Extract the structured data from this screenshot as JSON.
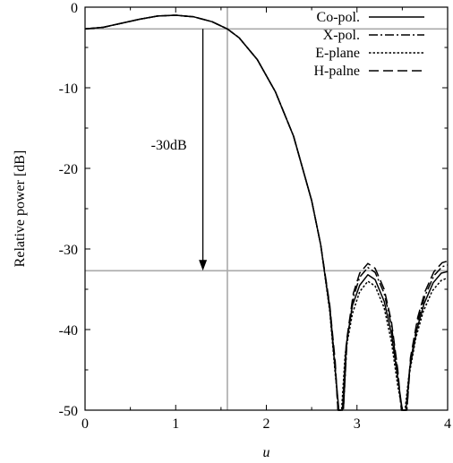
{
  "chart_data": {
    "type": "line",
    "xlabel": "u",
    "ylabel": "Relative power [dB]",
    "xlim": [
      0,
      4
    ],
    "ylim": [
      -50,
      0
    ],
    "x_ticks": [
      "0",
      "1",
      "2",
      "3",
      "4"
    ],
    "y_ticks": [
      "0",
      "-10",
      "-20",
      "-30",
      "-40",
      "-50"
    ],
    "grid": false,
    "legend_position": "top-right",
    "annotations": [
      {
        "text": "-30dB",
        "arrow_from": [
          1.3,
          -2.7
        ],
        "arrow_to": [
          1.3,
          -32.7
        ]
      }
    ],
    "reference_lines": {
      "horizontal": [
        -2.7,
        -32.7
      ],
      "vertical": [
        1.57
      ]
    },
    "series": [
      {
        "name": "Co-pol.",
        "style": "solid",
        "points": [
          [
            0,
            -2.7
          ],
          [
            0.2,
            -2.5
          ],
          [
            0.4,
            -2.0
          ],
          [
            0.6,
            -1.5
          ],
          [
            0.8,
            -1.1
          ],
          [
            1.0,
            -1.0
          ],
          [
            1.2,
            -1.2
          ],
          [
            1.4,
            -1.8
          ],
          [
            1.57,
            -2.7
          ],
          [
            1.7,
            -3.8
          ],
          [
            1.9,
            -6.5
          ],
          [
            2.1,
            -10.5
          ],
          [
            2.3,
            -16.0
          ],
          [
            2.5,
            -24.0
          ],
          [
            2.6,
            -29.5
          ],
          [
            2.7,
            -37.5
          ],
          [
            2.76,
            -45.0
          ],
          [
            2.8,
            -50.0
          ],
          [
            2.84,
            -50.0
          ],
          [
            2.88,
            -42.0
          ],
          [
            2.95,
            -37.0
          ],
          [
            3.03,
            -34.5
          ],
          [
            3.12,
            -33.2
          ],
          [
            3.2,
            -33.8
          ],
          [
            3.3,
            -36.5
          ],
          [
            3.38,
            -40.5
          ],
          [
            3.45,
            -46.0
          ],
          [
            3.5,
            -50.0
          ],
          [
            3.54,
            -50.0
          ],
          [
            3.58,
            -45.0
          ],
          [
            3.66,
            -40.0
          ],
          [
            3.74,
            -36.8
          ],
          [
            3.84,
            -34.2
          ],
          [
            3.93,
            -33.0
          ],
          [
            4.0,
            -32.8
          ]
        ]
      },
      {
        "name": "X-pol.",
        "style": "dashdot",
        "points": [
          [
            0,
            -2.7
          ],
          [
            0.2,
            -2.5
          ],
          [
            0.4,
            -2.0
          ],
          [
            0.6,
            -1.5
          ],
          [
            0.8,
            -1.1
          ],
          [
            1.0,
            -1.0
          ],
          [
            1.2,
            -1.2
          ],
          [
            1.4,
            -1.8
          ],
          [
            1.57,
            -2.7
          ],
          [
            1.7,
            -3.8
          ],
          [
            1.9,
            -6.5
          ],
          [
            2.1,
            -10.5
          ],
          [
            2.3,
            -16.0
          ],
          [
            2.5,
            -24.0
          ],
          [
            2.6,
            -29.5
          ],
          [
            2.7,
            -37.2
          ],
          [
            2.76,
            -44.5
          ],
          [
            2.79,
            -50.0
          ],
          [
            2.85,
            -50.0
          ],
          [
            2.89,
            -41.5
          ],
          [
            2.96,
            -36.0
          ],
          [
            3.03,
            -33.5
          ],
          [
            3.12,
            -32.3
          ],
          [
            3.2,
            -32.9
          ],
          [
            3.3,
            -35.5
          ],
          [
            3.38,
            -39.5
          ],
          [
            3.45,
            -45.5
          ],
          [
            3.49,
            -50.0
          ],
          [
            3.55,
            -50.0
          ],
          [
            3.59,
            -44.0
          ],
          [
            3.67,
            -39.0
          ],
          [
            3.75,
            -35.8
          ],
          [
            3.85,
            -33.3
          ],
          [
            3.94,
            -32.2
          ],
          [
            4.0,
            -32.0
          ]
        ]
      },
      {
        "name": "E-plane",
        "style": "dotted",
        "points": [
          [
            0,
            -2.7
          ],
          [
            0.2,
            -2.5
          ],
          [
            0.4,
            -2.0
          ],
          [
            0.6,
            -1.5
          ],
          [
            0.8,
            -1.1
          ],
          [
            1.0,
            -1.0
          ],
          [
            1.2,
            -1.2
          ],
          [
            1.4,
            -1.8
          ],
          [
            1.57,
            -2.7
          ],
          [
            1.7,
            -3.8
          ],
          [
            1.9,
            -6.5
          ],
          [
            2.1,
            -10.5
          ],
          [
            2.3,
            -16.0
          ],
          [
            2.5,
            -24.0
          ],
          [
            2.6,
            -29.5
          ],
          [
            2.7,
            -37.8
          ],
          [
            2.76,
            -45.5
          ],
          [
            2.8,
            -50.0
          ],
          [
            2.83,
            -50.0
          ],
          [
            2.87,
            -43.0
          ],
          [
            2.95,
            -38.0
          ],
          [
            3.03,
            -35.3
          ],
          [
            3.12,
            -34.0
          ],
          [
            3.2,
            -34.6
          ],
          [
            3.3,
            -37.3
          ],
          [
            3.38,
            -41.5
          ],
          [
            3.45,
            -47.0
          ],
          [
            3.5,
            -50.0
          ],
          [
            3.53,
            -50.0
          ],
          [
            3.57,
            -46.0
          ],
          [
            3.65,
            -41.0
          ],
          [
            3.73,
            -37.8
          ],
          [
            3.83,
            -35.2
          ],
          [
            3.93,
            -33.9
          ],
          [
            4.0,
            -33.6
          ]
        ]
      },
      {
        "name": "H-palne",
        "style": "dashed",
        "points": [
          [
            0,
            -2.7
          ],
          [
            0.2,
            -2.5
          ],
          [
            0.4,
            -2.0
          ],
          [
            0.6,
            -1.5
          ],
          [
            0.8,
            -1.1
          ],
          [
            1.0,
            -1.0
          ],
          [
            1.2,
            -1.2
          ],
          [
            1.4,
            -1.8
          ],
          [
            1.57,
            -2.7
          ],
          [
            1.7,
            -3.8
          ],
          [
            1.9,
            -6.5
          ],
          [
            2.1,
            -10.5
          ],
          [
            2.3,
            -16.0
          ],
          [
            2.5,
            -24.0
          ],
          [
            2.6,
            -29.5
          ],
          [
            2.7,
            -37.0
          ],
          [
            2.76,
            -44.0
          ],
          [
            2.79,
            -50.0
          ],
          [
            2.85,
            -50.0
          ],
          [
            2.89,
            -41.0
          ],
          [
            2.96,
            -35.5
          ],
          [
            3.03,
            -33.0
          ],
          [
            3.12,
            -31.8
          ],
          [
            3.2,
            -32.4
          ],
          [
            3.3,
            -35.0
          ],
          [
            3.38,
            -39.0
          ],
          [
            3.45,
            -45.0
          ],
          [
            3.49,
            -50.0
          ],
          [
            3.55,
            -50.0
          ],
          [
            3.59,
            -43.5
          ],
          [
            3.67,
            -38.5
          ],
          [
            3.75,
            -35.3
          ],
          [
            3.85,
            -32.8
          ],
          [
            3.94,
            -31.7
          ],
          [
            4.0,
            -31.5
          ]
        ]
      }
    ]
  }
}
